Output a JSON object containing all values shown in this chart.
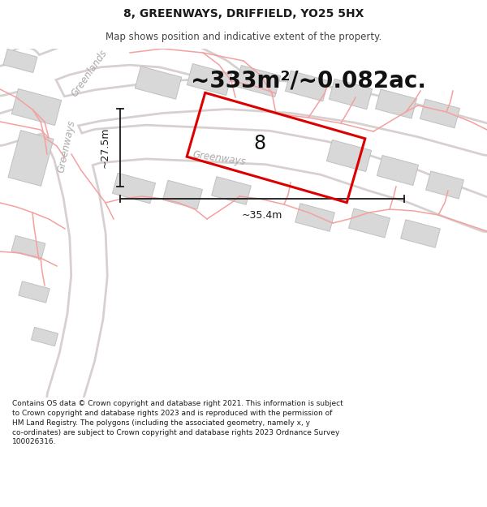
{
  "title": "8, GREENWAYS, DRIFFIELD, YO25 5HX",
  "subtitle": "Map shows position and indicative extent of the property.",
  "area_text": "~333m²/~0.082ac.",
  "dim_vertical": "~27.5m",
  "dim_horizontal": "~35.4m",
  "property_number": "8",
  "footer": "Contains OS data © Crown copyright and database right 2021. This information is subject\nto Crown copyright and database rights 2023 and is reproduced with the permission of\nHM Land Registry. The polygons (including the associated geometry, namely x, y\nco-ordinates) are subject to Crown copyright and database rights 2023 Ordnance Survey\n100026316.",
  "bg_color": "#ffffff",
  "map_bg": "#f2f0f0",
  "road_fill": "#ffffff",
  "road_edge": "#d8d0d0",
  "building_fill": "#d8d8d8",
  "building_stroke": "#c0c0c0",
  "pink_color": "#f4a0a0",
  "property_color": "#dd0000",
  "dim_color": "#1a1a1a",
  "text_color": "#1a1a1a",
  "street_color": "#aaaaaa",
  "title_fontsize": 10,
  "subtitle_fontsize": 8.5,
  "area_fontsize": 20,
  "dim_fontsize": 9,
  "footer_fontsize": 6.5
}
